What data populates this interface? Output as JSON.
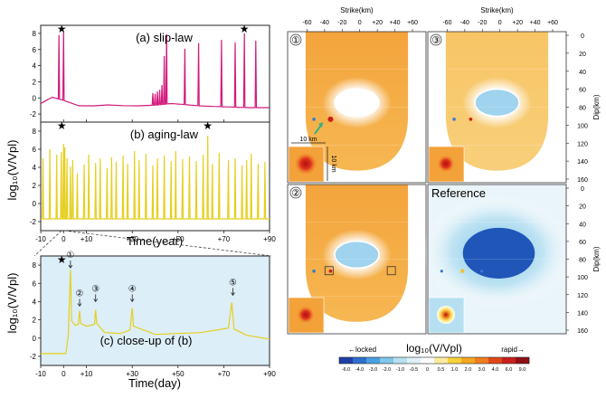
{
  "left": {
    "ylabel": "log₁₀(V/Vpl)",
    "ylabel_c": "log₁₀(V/Vpl)",
    "xlabel_ab": "Time(year)",
    "xlabel_c": "Time(day)",
    "ab_xticks": [
      "-10",
      "0",
      "+10",
      "+30",
      "+50",
      "+70",
      "+90"
    ],
    "c_xticks": [
      "-10",
      "0",
      "+10",
      "+30",
      "+50",
      "+70",
      "+90"
    ],
    "yticks": [
      "-2",
      "0",
      "2",
      "4",
      "6",
      "8"
    ]
  },
  "chart_data": [
    {
      "type": "line",
      "title": "(a) slip-law",
      "xlabel": "Time(year)",
      "ylabel": "log10(V/Vpl)",
      "xlim": [
        -10,
        90
      ],
      "ylim": [
        -3,
        9
      ],
      "color": "#d21a7c",
      "annotations": [
        {
          "symbol": "★",
          "x": 0
        },
        {
          "symbol": "★",
          "x": 79
        }
      ],
      "baseline": [
        [
          -10,
          -0.7
        ],
        [
          -5,
          0.1
        ],
        [
          0,
          -0.3
        ],
        [
          5,
          -0.9
        ],
        [
          12,
          -1.2
        ],
        [
          15,
          -0.6
        ],
        [
          20,
          -0.9
        ],
        [
          30,
          -1.0
        ],
        [
          40,
          -0.9
        ],
        [
          47,
          -0.7
        ],
        [
          52,
          -0.8
        ],
        [
          60,
          -1.0
        ],
        [
          70,
          -1.1
        ],
        [
          80,
          -1.2
        ],
        [
          90,
          -1.2
        ]
      ],
      "spikes": [
        [
          -2,
          7.8
        ],
        [
          0,
          8.2
        ],
        [
          39,
          0.6
        ],
        [
          40,
          0.5
        ],
        [
          41,
          0.8
        ],
        [
          42,
          1.0
        ],
        [
          43,
          1.6
        ],
        [
          44,
          5.2
        ],
        [
          45,
          7.9
        ],
        [
          53,
          6.1
        ],
        [
          59,
          6.8
        ],
        [
          69,
          7.2
        ],
        [
          75,
          6.9
        ],
        [
          79,
          8.0
        ],
        [
          84,
          7.1
        ]
      ]
    },
    {
      "type": "line",
      "title": "(b) aging-law",
      "xlabel": "Time(year)",
      "ylabel": "log10(V/Vpl)",
      "xlim": [
        -10,
        90
      ],
      "ylim": [
        -3,
        9
      ],
      "color": "#e6cf1e",
      "annotations": [
        {
          "symbol": "★",
          "x": 0
        },
        {
          "symbol": "★",
          "x": 63
        }
      ],
      "baseline": [
        [
          -10,
          -1.7
        ],
        [
          90,
          -1.7
        ]
      ],
      "spikes": [
        [
          -9,
          5.0
        ],
        [
          -6,
          6.0
        ],
        [
          -3,
          5.4
        ],
        [
          -1,
          5.7
        ],
        [
          0,
          6.6
        ],
        [
          0.5,
          6.2
        ],
        [
          1.5,
          5.0
        ],
        [
          3,
          4.1
        ],
        [
          4,
          4.8
        ],
        [
          6,
          3.3
        ],
        [
          9,
          4.3
        ],
        [
          11,
          5.4
        ],
        [
          14,
          4.5
        ],
        [
          16,
          5.0
        ],
        [
          19,
          3.9
        ],
        [
          21,
          5.1
        ],
        [
          23,
          4.6
        ],
        [
          26,
          5.3
        ],
        [
          28,
          4.4
        ],
        [
          31,
          5.8
        ],
        [
          33,
          4.8
        ],
        [
          36,
          5.5
        ],
        [
          39,
          4.2
        ],
        [
          41,
          5.0
        ],
        [
          44,
          5.3
        ],
        [
          47,
          4.7
        ],
        [
          49,
          5.8
        ],
        [
          52,
          4.9
        ],
        [
          55,
          5.2
        ],
        [
          58,
          4.7
        ],
        [
          61,
          5.4
        ],
        [
          63,
          7.5
        ],
        [
          65,
          4.4
        ],
        [
          68,
          5.6
        ],
        [
          72,
          4.8
        ],
        [
          75,
          5.0
        ],
        [
          78,
          4.2
        ],
        [
          80,
          4.8
        ],
        [
          82,
          5.5
        ],
        [
          85,
          4.4
        ],
        [
          88,
          4.6
        ]
      ]
    },
    {
      "type": "line",
      "title": "(c) close-up of (b)",
      "xlabel": "Time(day)",
      "ylabel": "log10(V/Vpl)",
      "xlim": [
        -10,
        90
      ],
      "ylim": [
        -3,
        9
      ],
      "color": "#e6cf1e",
      "background": "#dceef8",
      "annotations": [
        {
          "symbol": "★",
          "x": 0
        }
      ],
      "markers": [
        {
          "label": "①",
          "x": 3,
          "y": 7.7
        },
        {
          "label": "②",
          "x": 7,
          "y": 3.5
        },
        {
          "label": "③",
          "x": 14,
          "y": 4.0
        },
        {
          "label": "④",
          "x": 30,
          "y": 4.0
        },
        {
          "label": "⑤",
          "x": 74,
          "y": 4.7
        }
      ],
      "curve": [
        [
          -10,
          -1.7
        ],
        [
          1,
          -1.7
        ],
        [
          2,
          0.2
        ],
        [
          3,
          7.5
        ],
        [
          3.5,
          1.9
        ],
        [
          5,
          1.4
        ],
        [
          6.5,
          1.5
        ],
        [
          7,
          3.0
        ],
        [
          7.5,
          1.6
        ],
        [
          10,
          1.3
        ],
        [
          13.5,
          1.5
        ],
        [
          14,
          3.1
        ],
        [
          14.5,
          1.6
        ],
        [
          18,
          0.6
        ],
        [
          25,
          0.5
        ],
        [
          29,
          0.9
        ],
        [
          30,
          3.3
        ],
        [
          30.5,
          1.3
        ],
        [
          40,
          0.4
        ],
        [
          60,
          0.6
        ],
        [
          72,
          1.1
        ],
        [
          73.5,
          3.9
        ],
        [
          74.5,
          1.0
        ],
        [
          80,
          0.3
        ],
        [
          90,
          -0.1
        ]
      ]
    },
    {
      "type": "heatmap",
      "panels": [
        {
          "label": "①",
          "slip_patch_relative_level": 0.55,
          "inset": "red-spot"
        },
        {
          "label": "③",
          "slip_patch_relative_level": 0.35,
          "inset": "red-spot"
        },
        {
          "label": "②",
          "slip_patch_relative_level": 0.35,
          "inset": "red-spot"
        },
        {
          "label": "Reference",
          "slip_patch_relative_level": -0.8,
          "inset": "red-spot"
        }
      ],
      "x_title": "Strike(km)",
      "x_ticks": [
        "-60",
        "-40",
        "-20",
        "0",
        "+20",
        "+40",
        "+60"
      ],
      "y_title": "Dip(km)",
      "y_ticks": [
        "0",
        "20",
        "40",
        "60",
        "80",
        "100",
        "120",
        "140",
        "160"
      ],
      "scale_bar_h": "10 km",
      "scale_bar_v": "10 km",
      "colorbar": {
        "title": "log₁₀(V/Vpl)",
        "left_label": "←locked",
        "right_label": "rapid→",
        "ticks": [
          "-6.0",
          "-4.0",
          "-3.0",
          "-2.0",
          "-1.0",
          "-0.5",
          "0",
          "0.5",
          "1.0",
          "2.0",
          "3.0",
          "4.0",
          "6.0",
          "9.0"
        ],
        "colors": [
          "#1f3fa8",
          "#2f6fcf",
          "#4aa0e0",
          "#7fc6ea",
          "#b6e0f2",
          "#dff1f8",
          "#ffffff",
          "#fbeda0",
          "#f7d23a",
          "#f5a623",
          "#ee7d1e",
          "#e0481a",
          "#c8201c",
          "#8e0f14"
        ]
      }
    }
  ]
}
